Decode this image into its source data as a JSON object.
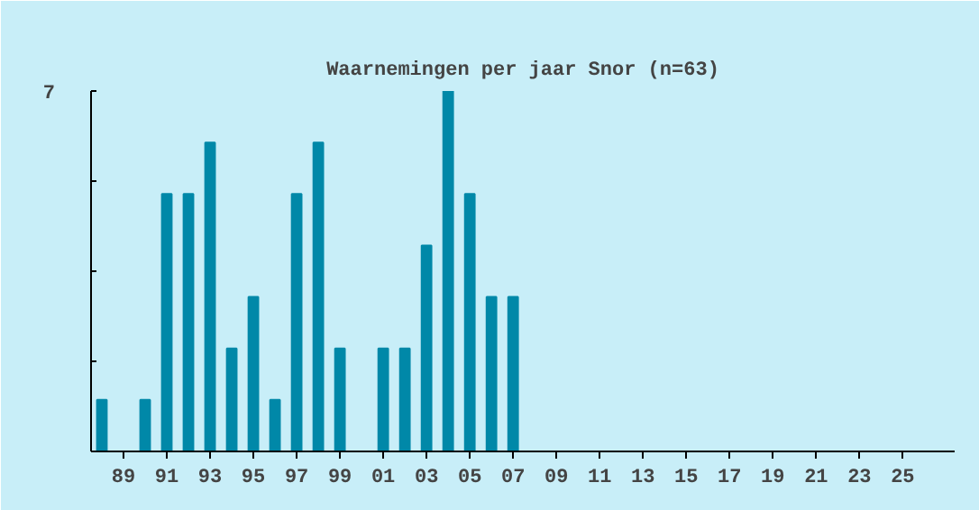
{
  "chart_data": {
    "type": "bar",
    "title": "Waarnemingen per jaar Snor (n=63)",
    "categories": [
      null,
      "89",
      null,
      "91",
      null,
      "93",
      null,
      "95",
      null,
      "97",
      null,
      "99",
      null,
      "01",
      null,
      "03",
      null,
      "05",
      null,
      "07",
      null,
      "09",
      null,
      "11",
      null,
      "13",
      null,
      "15",
      null,
      "17",
      null,
      "19",
      null,
      "21",
      null,
      "23",
      null,
      "25",
      null
    ],
    "values": [
      1,
      0,
      1,
      5,
      5,
      6,
      2,
      3,
      1,
      5,
      6,
      2,
      0,
      2,
      2,
      4,
      7,
      5,
      3,
      3,
      0,
      0,
      0,
      0,
      0,
      0,
      0,
      0,
      0,
      0,
      0,
      0,
      0,
      0,
      0,
      0,
      0,
      0,
      0
    ],
    "color": "#0088a8",
    "ylim": [
      0,
      7
    ],
    "yticks": [
      {
        "value": 0,
        "label": null
      },
      {
        "value": 1.75,
        "label": null
      },
      {
        "value": 3.5,
        "label": null
      },
      {
        "value": 5.25,
        "label": null
      },
      {
        "value": 7,
        "label": "7"
      }
    ],
    "grid": false
  }
}
